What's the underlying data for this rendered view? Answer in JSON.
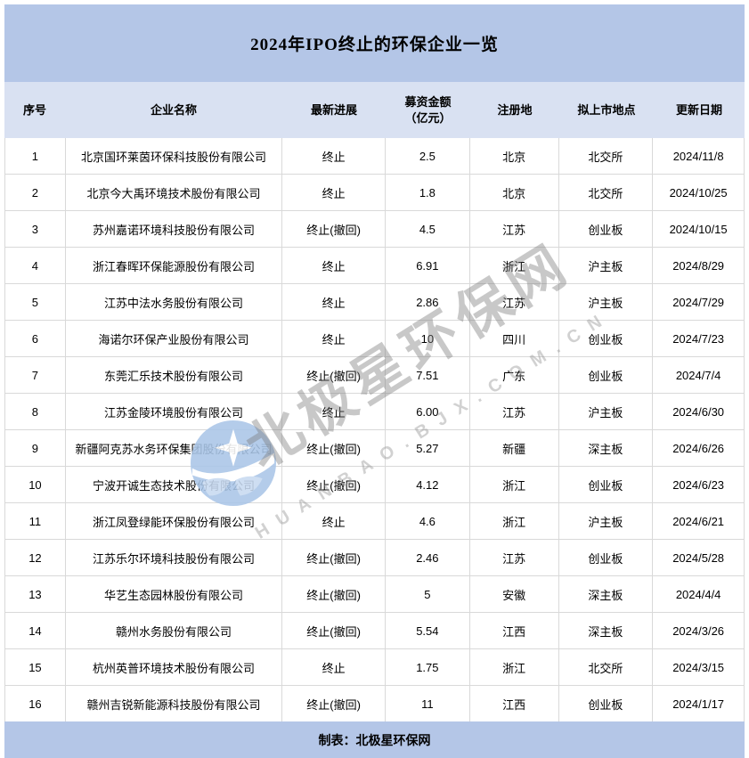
{
  "title": "2024年IPO终止的环保企业一览",
  "table": {
    "columns": [
      "序号",
      "企业名称",
      "最新进展",
      "募资金额\n（亿元）",
      "注册地",
      "拟上市地点",
      "更新日期"
    ],
    "rows": [
      [
        "1",
        "北京国环莱茵环保科技股份有限公司",
        "终止",
        "2.5",
        "北京",
        "北交所",
        "2024/11/8"
      ],
      [
        "2",
        "北京今大禹环境技术股份有限公司",
        "终止",
        "1.8",
        "北京",
        "北交所",
        "2024/10/25"
      ],
      [
        "3",
        "苏州嘉诺环境科技股份有限公司",
        "终止(撤回)",
        "4.5",
        "江苏",
        "创业板",
        "2024/10/15"
      ],
      [
        "4",
        "浙江春晖环保能源股份有限公司",
        "终止",
        "6.91",
        "浙江",
        "沪主板",
        "2024/8/29"
      ],
      [
        "5",
        "江苏中法水务股份有限公司",
        "终止",
        "2.86",
        "江苏",
        "沪主板",
        "2024/7/29"
      ],
      [
        "6",
        "海诺尔环保产业股份有限公司",
        "终止",
        "10",
        "四川",
        "创业板",
        "2024/7/23"
      ],
      [
        "7",
        "东莞汇乐技术股份有限公司",
        "终止(撤回)",
        "7.51",
        "广东",
        "创业板",
        "2024/7/4"
      ],
      [
        "8",
        "江苏金陵环境股份有限公司",
        "终止",
        "6.00",
        "江苏",
        "沪主板",
        "2024/6/30"
      ],
      [
        "9",
        "新疆阿克苏水务环保集团股份有限公司",
        "终止(撤回)",
        "5.27",
        "新疆",
        "深主板",
        "2024/6/26"
      ],
      [
        "10",
        "宁波开诚生态技术股份有限公司",
        "终止(撤回)",
        "4.12",
        "浙江",
        "创业板",
        "2024/6/23"
      ],
      [
        "11",
        "浙江凤登绿能环保股份有限公司",
        "终止",
        "4.6",
        "浙江",
        "沪主板",
        "2024/6/21"
      ],
      [
        "12",
        "江苏乐尔环境科技股份有限公司",
        "终止(撤回)",
        "2.46",
        "江苏",
        "创业板",
        "2024/5/28"
      ],
      [
        "13",
        "华艺生态园林股份有限公司",
        "终止(撤回)",
        "5",
        "安徽",
        "深主板",
        "2024/4/4"
      ],
      [
        "14",
        "赣州水务股份有限公司",
        "终止(撤回)",
        "5.54",
        "江西",
        "深主板",
        "2024/3/26"
      ],
      [
        "15",
        "杭州英普环境技术股份有限公司",
        "终止",
        "1.75",
        "浙江",
        "北交所",
        "2024/3/15"
      ],
      [
        "16",
        "赣州吉锐新能源科技股份有限公司",
        "终止(撤回)",
        "11",
        "江西",
        "创业板",
        "2024/1/17"
      ]
    ]
  },
  "footer": "制表：北极星环保网",
  "watermark": {
    "text": "北极星环保网",
    "subtext": "HUANBAO.BJX.COM.CN",
    "logo": "polaris-star-logo"
  },
  "colors": {
    "title_bar_bg": "#b4c6e7",
    "header_row_bg": "#d9e1f2",
    "grid_line": "#d9d9d9",
    "text": "#000000",
    "watermark_gray": "#7d7d7d",
    "logo_blue": "#aac6e8"
  }
}
